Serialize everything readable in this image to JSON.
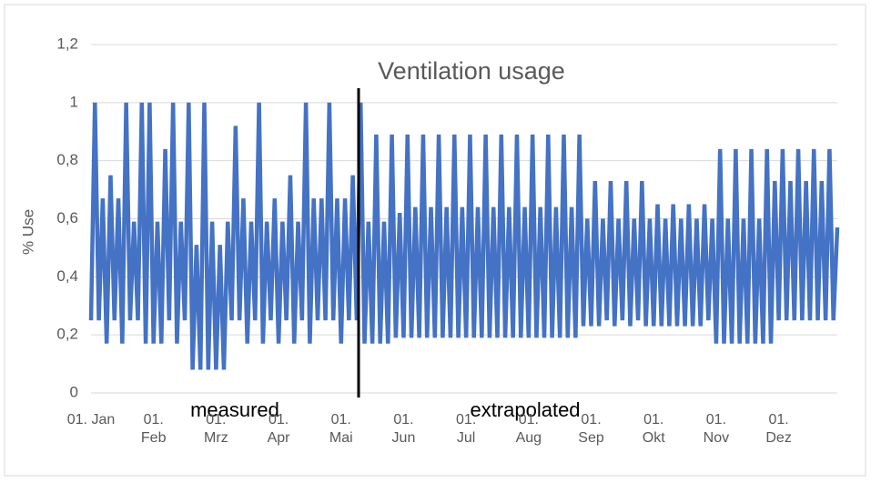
{
  "chart_data": {
    "type": "line",
    "title": "Ventilation usage",
    "y_label": "% Use",
    "annotations": [
      "measured",
      "extrapolated"
    ],
    "categories": [
      "01. Jan",
      null,
      null,
      null,
      null,
      null,
      null,
      null,
      null,
      null,
      null,
      null,
      null,
      null,
      null,
      null,
      "01. Feb",
      null,
      null,
      null,
      null,
      null,
      null,
      null,
      null,
      null,
      null,
      null,
      null,
      null,
      null,
      null,
      "01. Mrz",
      null,
      null,
      null,
      null,
      null,
      null,
      null,
      null,
      null,
      null,
      null,
      null,
      null,
      null,
      null,
      "01. Apr",
      null,
      null,
      null,
      null,
      null,
      null,
      null,
      null,
      null,
      null,
      null,
      null,
      null,
      null,
      null,
      "01. Mai",
      null,
      null,
      null,
      null,
      null,
      null,
      null,
      null,
      null,
      null,
      null,
      null,
      null,
      null,
      null,
      "01. Jun",
      null,
      null,
      null,
      null,
      null,
      null,
      null,
      null,
      null,
      null,
      null,
      null,
      null,
      null,
      null,
      "01. Jul",
      null,
      null,
      null,
      null,
      null,
      null,
      null,
      null,
      null,
      null,
      null,
      null,
      null,
      null,
      null,
      "01. Aug",
      null,
      null,
      null,
      null,
      null,
      null,
      null,
      null,
      null,
      null,
      null,
      null,
      null,
      null,
      null,
      "01. Sep",
      null,
      null,
      null,
      null,
      null,
      null,
      null,
      null,
      null,
      null,
      null,
      null,
      null,
      null,
      null,
      "01. Okt",
      null,
      null,
      null,
      null,
      null,
      null,
      null,
      null,
      null,
      null,
      null,
      null,
      null,
      null,
      null,
      "01. Nov",
      null,
      null,
      null,
      null,
      null,
      null,
      null,
      null,
      null,
      null,
      null,
      null,
      null,
      null,
      null,
      "01. Dez",
      null,
      null,
      null,
      null,
      null,
      null,
      null,
      null,
      null,
      null,
      null,
      null,
      null,
      null,
      null
    ],
    "series": [
      {
        "name": "% Use",
        "color": "#4472c4",
        "values": [
          0.25,
          1,
          0.25,
          0.67,
          0.17,
          0.75,
          0.25,
          0.67,
          0.17,
          1,
          0.25,
          0.59,
          0.25,
          1,
          0.17,
          1,
          0.17,
          0.59,
          0.17,
          0.84,
          0.25,
          1,
          0.17,
          0.59,
          0.25,
          1,
          0.08,
          0.51,
          0.08,
          1,
          0.08,
          0.59,
          0.08,
          0.51,
          0.08,
          0.59,
          0.25,
          0.92,
          0.25,
          0.67,
          0.17,
          0.59,
          0.25,
          1,
          0.17,
          0.59,
          0.25,
          0.67,
          0.17,
          0.59,
          0.25,
          0.75,
          0.17,
          0.59,
          0.25,
          1,
          0.17,
          0.67,
          0.25,
          0.67,
          0.25,
          1,
          0.25,
          0.67,
          0.17,
          0.67,
          0.25,
          0.75,
          0.25,
          1,
          0.17,
          0.59,
          0.17,
          0.89,
          0.17,
          0.59,
          0.17,
          0.89,
          0.19,
          0.62,
          0.19,
          0.89,
          0.19,
          0.64,
          0.19,
          0.89,
          0.19,
          0.64,
          0.19,
          0.89,
          0.19,
          0.64,
          0.19,
          0.89,
          0.19,
          0.64,
          0.19,
          0.89,
          0.19,
          0.64,
          0.19,
          0.89,
          0.19,
          0.64,
          0.19,
          0.89,
          0.19,
          0.64,
          0.19,
          0.89,
          0.19,
          0.64,
          0.19,
          0.89,
          0.19,
          0.64,
          0.19,
          0.89,
          0.19,
          0.64,
          0.19,
          0.89,
          0.19,
          0.64,
          0.19,
          0.89,
          0.23,
          0.6,
          0.23,
          0.73,
          0.23,
          0.6,
          0.25,
          0.73,
          0.23,
          0.6,
          0.25,
          0.73,
          0.23,
          0.6,
          0.25,
          0.73,
          0.23,
          0.6,
          0.23,
          0.65,
          0.23,
          0.6,
          0.23,
          0.65,
          0.23,
          0.6,
          0.23,
          0.65,
          0.23,
          0.6,
          0.23,
          0.65,
          0.25,
          0.6,
          0.17,
          0.84,
          0.17,
          0.6,
          0.17,
          0.84,
          0.17,
          0.6,
          0.17,
          0.84,
          0.17,
          0.6,
          0.17,
          0.84,
          0.17,
          0.73,
          0.25,
          0.84,
          0.25,
          0.73,
          0.25,
          0.84,
          0.25,
          0.73,
          0.25,
          0.84,
          0.25,
          0.73,
          0.25,
          0.84,
          0.25,
          0.57
        ]
      }
    ],
    "ylim": [
      0,
      1.2
    ],
    "yticks": [
      0,
      {
        "value": 0.2,
        "label": "0,2"
      },
      {
        "value": 0.4,
        "label": "0,4"
      },
      {
        "value": 0.6,
        "label": "0,6"
      },
      {
        "value": 0.8,
        "label": "0,8"
      },
      1,
      {
        "value": 1.2,
        "label": "1,2"
      }
    ],
    "grid": true
  }
}
